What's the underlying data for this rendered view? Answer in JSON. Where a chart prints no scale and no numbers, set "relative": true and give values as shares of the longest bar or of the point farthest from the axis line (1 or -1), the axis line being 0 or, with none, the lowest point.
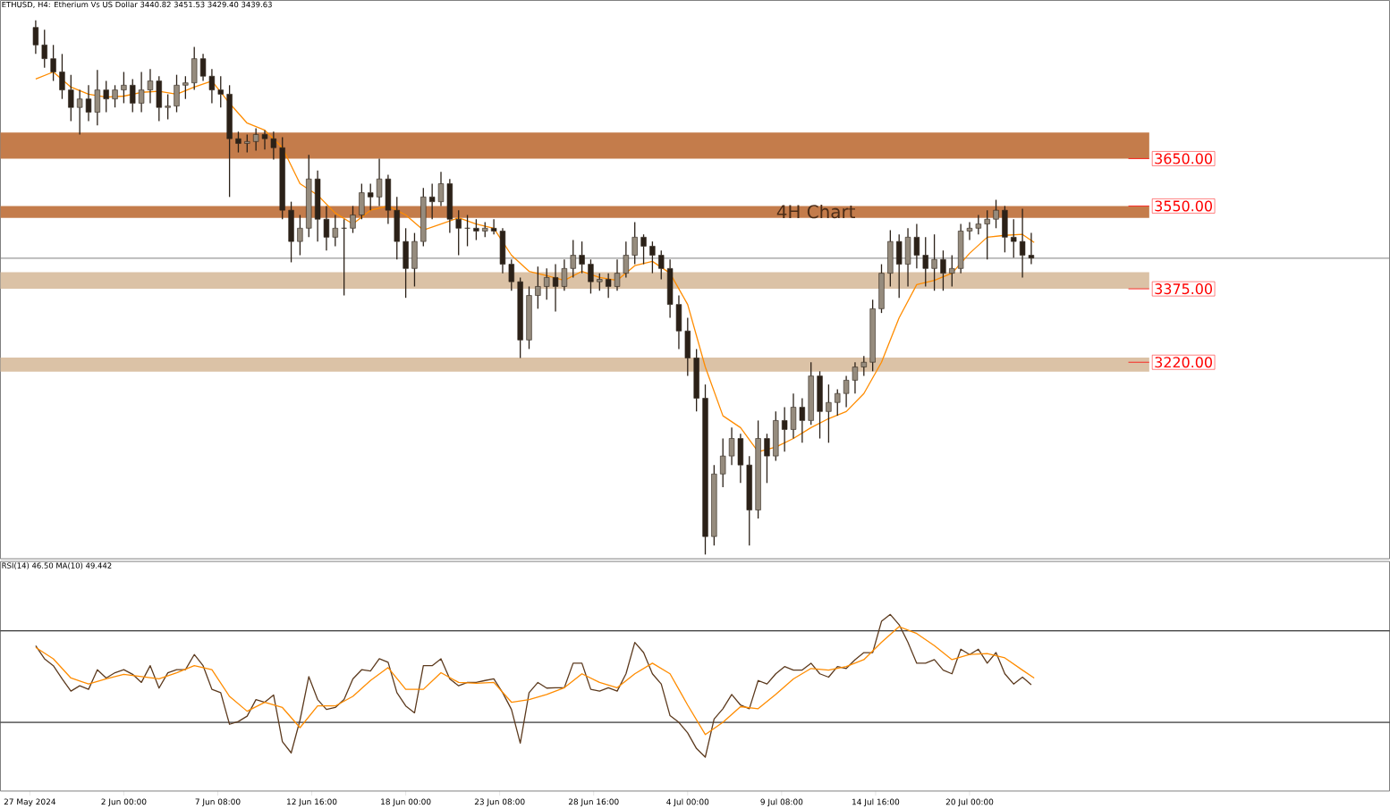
{
  "chart_data": [
    {
      "type": "candlestick",
      "title": "ETHUSD, H4:  Etherium Vs US Dollar  3440.82 3451.53 3429.40 3439.63",
      "x": [
        "2024-05-28T00:00",
        "2024-05-28T12:00",
        "2024-05-29T00:00",
        "2024-05-29T12:00",
        "2024-05-30T00:00",
        "2024-05-30T12:00",
        "2024-05-31T00:00",
        "2024-05-31T12:00",
        "2024-06-01T00:00",
        "2024-06-01T12:00",
        "2024-06-02T00:00",
        "2024-06-02T12:00",
        "2024-06-03T00:00",
        "2024-06-03T12:00",
        "2024-06-04T00:00",
        "2024-06-04T12:00",
        "2024-06-05T00:00",
        "2024-06-05T12:00",
        "2024-06-06T00:00",
        "2024-06-06T12:00",
        "2024-06-07T00:00",
        "2024-06-07T12:00",
        "2024-06-08T00:00",
        "2024-06-08T12:00",
        "2024-06-09T00:00",
        "2024-06-09T12:00",
        "2024-06-10T00:00",
        "2024-06-10T12:00",
        "2024-06-11T00:00",
        "2024-06-11T12:00",
        "2024-06-12T00:00",
        "2024-06-12T12:00",
        "2024-06-13T00:00",
        "2024-06-13T12:00",
        "2024-06-14T00:00",
        "2024-06-14T12:00",
        "2024-06-15T00:00",
        "2024-06-15T12:00",
        "2024-06-16T00:00",
        "2024-06-16T12:00",
        "2024-06-17T00:00",
        "2024-06-17T12:00",
        "2024-06-18T00:00",
        "2024-06-18T12:00",
        "2024-06-19T00:00",
        "2024-06-19T12:00",
        "2024-06-20T00:00",
        "2024-06-20T12:00",
        "2024-06-21T00:00",
        "2024-06-21T12:00",
        "2024-06-22T00:00",
        "2024-06-22T12:00",
        "2024-06-23T00:00",
        "2024-06-23T12:00",
        "2024-06-24T00:00",
        "2024-06-24T12:00",
        "2024-06-25T00:00",
        "2024-06-25T12:00",
        "2024-06-26T00:00",
        "2024-06-26T12:00",
        "2024-06-27T00:00",
        "2024-06-27T12:00",
        "2024-06-28T00:00",
        "2024-06-28T12:00",
        "2024-06-29T00:00",
        "2024-06-29T12:00",
        "2024-06-30T00:00",
        "2024-06-30T12:00",
        "2024-07-01T00:00",
        "2024-07-01T12:00",
        "2024-07-02T00:00",
        "2024-07-02T12:00",
        "2024-07-03T00:00",
        "2024-07-03T12:00",
        "2024-07-04T00:00",
        "2024-07-04T12:00",
        "2024-07-05T00:00",
        "2024-07-05T12:00",
        "2024-07-06T00:00",
        "2024-07-06T12:00",
        "2024-07-07T00:00",
        "2024-07-07T12:00",
        "2024-07-08T00:00",
        "2024-07-08T12:00",
        "2024-07-09T00:00",
        "2024-07-09T12:00",
        "2024-07-10T00:00",
        "2024-07-10T12:00",
        "2024-07-11T00:00",
        "2024-07-11T12:00",
        "2024-07-12T00:00",
        "2024-07-12T12:00",
        "2024-07-13T00:00",
        "2024-07-13T12:00",
        "2024-07-14T00:00",
        "2024-07-14T12:00",
        "2024-07-15T00:00",
        "2024-07-15T12:00",
        "2024-07-16T00:00",
        "2024-07-16T12:00",
        "2024-07-17T00:00",
        "2024-07-17T12:00",
        "2024-07-18T00:00",
        "2024-07-18T12:00",
        "2024-07-19T00:00",
        "2024-07-19T12:00",
        "2024-07-20T00:00",
        "2024-07-20T12:00",
        "2024-07-21T00:00",
        "2024-07-21T12:00",
        "2024-07-22T00:00",
        "2024-07-22T12:00",
        "2024-07-23T00:00",
        "2024-07-23T12:00"
      ],
      "ohlc": [
        [
          3927,
          3942,
          3871,
          3890
        ],
        [
          3890,
          3922,
          3842,
          3861
        ],
        [
          3861,
          3890,
          3814,
          3833
        ],
        [
          3833,
          3871,
          3776,
          3795
        ],
        [
          3795,
          3827,
          3729,
          3758
        ],
        [
          3758,
          3795,
          3701,
          3776
        ],
        [
          3776,
          3805,
          3729,
          3748
        ],
        [
          3748,
          3837,
          3720,
          3795
        ],
        [
          3795,
          3814,
          3748,
          3776
        ],
        [
          3776,
          3805,
          3758,
          3795
        ],
        [
          3795,
          3833,
          3767,
          3805
        ],
        [
          3805,
          3818,
          3748,
          3767
        ],
        [
          3767,
          3833,
          3748,
          3795
        ],
        [
          3795,
          3839,
          3767,
          3814
        ],
        [
          3814,
          3824,
          3729,
          3758
        ],
        [
          3758,
          3786,
          3733,
          3761
        ],
        [
          3761,
          3827,
          3748,
          3805
        ],
        [
          3805,
          3824,
          3776,
          3810
        ],
        [
          3810,
          3886,
          3795,
          3861
        ],
        [
          3861,
          3871,
          3814,
          3824
        ],
        [
          3824,
          3839,
          3767,
          3795
        ],
        [
          3795,
          3824,
          3758,
          3786
        ],
        [
          3786,
          3805,
          3569,
          3692
        ],
        [
          3692,
          3707,
          3663,
          3682
        ],
        [
          3682,
          3701,
          3663,
          3686
        ],
        [
          3686,
          3714,
          3667,
          3701
        ],
        [
          3701,
          3710,
          3669,
          3692
        ],
        [
          3692,
          3707,
          3648,
          3673
        ],
        [
          3673,
          3695,
          3522,
          3541
        ],
        [
          3541,
          3559,
          3431,
          3475
        ],
        [
          3475,
          3531,
          3446,
          3503
        ],
        [
          3503,
          3658,
          3484,
          3607
        ],
        [
          3607,
          3625,
          3475,
          3522
        ],
        [
          3522,
          3550,
          3456,
          3484
        ],
        [
          3484,
          3531,
          3465,
          3503
        ],
        [
          3503,
          3522,
          3361,
          3503
        ],
        [
          3503,
          3550,
          3493,
          3531
        ],
        [
          3531,
          3597,
          3522,
          3578
        ],
        [
          3578,
          3597,
          3541,
          3569
        ],
        [
          3569,
          3650,
          3550,
          3607
        ],
        [
          3607,
          3616,
          3512,
          3541
        ],
        [
          3541,
          3569,
          3437,
          3475
        ],
        [
          3475,
          3503,
          3356,
          3418
        ],
        [
          3418,
          3493,
          3380,
          3475
        ],
        [
          3475,
          3588,
          3465,
          3569
        ],
        [
          3569,
          3597,
          3522,
          3559
        ],
        [
          3559,
          3622,
          3550,
          3597
        ],
        [
          3597,
          3607,
          3493,
          3522
        ],
        [
          3522,
          3541,
          3446,
          3503
        ],
        [
          3503,
          3531,
          3465,
          3503
        ],
        [
          3503,
          3522,
          3478,
          3497
        ],
        [
          3497,
          3516,
          3484,
          3503
        ],
        [
          3503,
          3522,
          3490,
          3497
        ],
        [
          3497,
          3503,
          3408,
          3427
        ],
        [
          3427,
          3437,
          3371,
          3390
        ],
        [
          3390,
          3399,
          3229,
          3267
        ],
        [
          3267,
          3380,
          3248,
          3361
        ],
        [
          3361,
          3422,
          3333,
          3380
        ],
        [
          3380,
          3418,
          3352,
          3399
        ],
        [
          3399,
          3427,
          3327,
          3380
        ],
        [
          3380,
          3437,
          3371,
          3418
        ],
        [
          3418,
          3478,
          3399,
          3446
        ],
        [
          3446,
          3475,
          3408,
          3427
        ],
        [
          3427,
          3437,
          3365,
          3390
        ],
        [
          3390,
          3408,
          3371,
          3395
        ],
        [
          3395,
          3408,
          3356,
          3380
        ],
        [
          3380,
          3437,
          3371,
          3408
        ],
        [
          3408,
          3475,
          3399,
          3446
        ],
        [
          3446,
          3516,
          3427,
          3484
        ],
        [
          3484,
          3490,
          3427,
          3465
        ],
        [
          3465,
          3475,
          3408,
          3446
        ],
        [
          3446,
          3456,
          3395,
          3418
        ],
        [
          3418,
          3437,
          3314,
          3342
        ],
        [
          3342,
          3361,
          3248,
          3286
        ],
        [
          3286,
          3314,
          3191,
          3229
        ],
        [
          3229,
          3248,
          3116,
          3144
        ],
        [
          3144,
          3173,
          2814,
          2852
        ],
        [
          2852,
          3003,
          2833,
          2984
        ],
        [
          2984,
          3059,
          2956,
          3022
        ],
        [
          3022,
          3082,
          3003,
          3059
        ],
        [
          3059,
          3069,
          2965,
          3003
        ],
        [
          3003,
          3022,
          2833,
          2908
        ],
        [
          2908,
          3097,
          2890,
          3059
        ],
        [
          3059,
          3069,
          2965,
          3022
        ],
        [
          3022,
          3116,
          3012,
          3097
        ],
        [
          3097,
          3125,
          3031,
          3078
        ],
        [
          3078,
          3154,
          3059,
          3125
        ],
        [
          3125,
          3144,
          3050,
          3097
        ],
        [
          3097,
          3220,
          3088,
          3191
        ],
        [
          3191,
          3201,
          3059,
          3116
        ],
        [
          3116,
          3173,
          3050,
          3135
        ],
        [
          3135,
          3163,
          3107,
          3154
        ],
        [
          3154,
          3191,
          3125,
          3182
        ],
        [
          3182,
          3220,
          3154,
          3210
        ],
        [
          3210,
          3233,
          3191,
          3220
        ],
        [
          3220,
          3352,
          3201,
          3333
        ],
        [
          3333,
          3427,
          3324,
          3408
        ],
        [
          3408,
          3499,
          3380,
          3475
        ],
        [
          3475,
          3490,
          3356,
          3427
        ],
        [
          3427,
          3503,
          3380,
          3484
        ],
        [
          3484,
          3512,
          3418,
          3446
        ],
        [
          3446,
          3484,
          3380,
          3418
        ],
        [
          3418,
          3490,
          3371,
          3437
        ],
        [
          3437,
          3456,
          3371,
          3408
        ],
        [
          3408,
          3446,
          3380,
          3418
        ],
        [
          3418,
          3512,
          3408,
          3497
        ],
        [
          3497,
          3516,
          3478,
          3503
        ],
        [
          3503,
          3531,
          3490,
          3512
        ],
        [
          3512,
          3541,
          3437,
          3522
        ],
        [
          3522,
          3563,
          3503,
          3541
        ],
        [
          3541,
          3550,
          3452,
          3484
        ],
        [
          3484,
          3522,
          3441,
          3475
        ],
        [
          3475,
          3544,
          3399,
          3446
        ],
        [
          3446,
          3493,
          3427,
          3440
        ]
      ],
      "series": [
        {
          "type": "line",
          "color": "#ff8c00",
          "x": [
            "2024-05-28T00:00",
            "2024-05-29T00:00",
            "2024-05-30T00:00",
            "2024-05-31T00:00",
            "2024-06-01T00:00",
            "2024-06-02T00:00",
            "2024-06-03T00:00",
            "2024-06-04T00:00",
            "2024-06-05T00:00",
            "2024-06-06T00:00",
            "2024-06-07T00:00",
            "2024-06-08T00:00",
            "2024-06-09T00:00",
            "2024-06-10T00:00",
            "2024-06-11T00:00",
            "2024-06-12T00:00",
            "2024-06-13T00:00",
            "2024-06-14T00:00",
            "2024-06-15T00:00",
            "2024-06-16T00:00",
            "2024-06-17T00:00",
            "2024-06-18T00:00",
            "2024-06-19T00:00",
            "2024-06-20T00:00",
            "2024-06-21T00:00",
            "2024-06-22T00:00",
            "2024-06-23T00:00",
            "2024-06-24T00:00",
            "2024-06-25T00:00",
            "2024-06-26T00:00",
            "2024-06-27T00:00",
            "2024-06-28T00:00",
            "2024-06-29T00:00",
            "2024-06-30T00:00",
            "2024-07-01T00:00",
            "2024-07-02T00:00",
            "2024-07-03T00:00",
            "2024-07-04T00:00",
            "2024-07-05T00:00",
            "2024-07-06T00:00",
            "2024-07-07T00:00",
            "2024-07-08T00:00",
            "2024-07-09T00:00",
            "2024-07-10T00:00",
            "2024-07-11T00:00",
            "2024-07-12T00:00",
            "2024-07-13T00:00",
            "2024-07-14T00:00",
            "2024-07-15T00:00",
            "2024-07-16T00:00",
            "2024-07-17T00:00",
            "2024-07-18T00:00",
            "2024-07-19T00:00",
            "2024-07-20T00:00",
            "2024-07-21T00:00",
            "2024-07-22T00:00",
            "2024-07-23T00:00",
            "2024-07-23T16:00"
          ],
          "values": [
            3818,
            3833,
            3801,
            3786,
            3780,
            3782,
            3790,
            3792,
            3786,
            3801,
            3814,
            3767,
            3725,
            3710,
            3673,
            3597,
            3573,
            3535,
            3512,
            3541,
            3550,
            3531,
            3499,
            3512,
            3525,
            3512,
            3503,
            3446,
            3412,
            3403,
            3393,
            3412,
            3399,
            3393,
            3424,
            3433,
            3408,
            3342,
            3210,
            3107,
            3082,
            3031,
            3041,
            3059,
            3082,
            3101,
            3116,
            3154,
            3220,
            3314,
            3384,
            3393,
            3408,
            3450,
            3484,
            3488,
            3490,
            3473
          ]
        }
      ],
      "xlim": [
        "2024-05-26T00:00",
        "2024-08-12T20:00"
      ],
      "ylim": [
        2805,
        3984
      ],
      "tick_labels": false,
      "bands": [
        {
          "axis": "y",
          "from": 3650,
          "to": 3705,
          "color": "#c47c4b"
        },
        {
          "axis": "y",
          "from": 3525,
          "to": 3550,
          "color": "#c47c4b"
        },
        {
          "axis": "y",
          "from": 3375,
          "to": 3410,
          "color": "#dbc2a6"
        },
        {
          "axis": "y",
          "from": 3200,
          "to": 3230,
          "color": "#dbc2a6"
        }
      ],
      "ref_lines": [
        {
          "axis": "y",
          "value": 3439.63,
          "color": "#808080"
        },
        {
          "axis": "y",
          "value": 3650,
          "label": "3650.00",
          "color": "#ff0000"
        },
        {
          "axis": "y",
          "value": 3550,
          "label": "3550.00",
          "color": "#ff0000"
        },
        {
          "axis": "y",
          "value": 3375,
          "label": "3375.00",
          "color": "#ff0000"
        },
        {
          "axis": "y",
          "value": 3220,
          "label": "3220.00",
          "color": "#ff0000"
        }
      ],
      "annotations": [
        "4H Chart"
      ]
    },
    {
      "type": "line",
      "title": "RSI(14) 46.50 MA(10) 49.442",
      "series": [
        {
          "color": "#5c3a1e",
          "x": [
            "2024-05-28T00:00",
            "2024-05-28T12:00",
            "2024-05-29T00:00",
            "2024-05-29T12:00",
            "2024-05-30T00:00",
            "2024-05-30T12:00",
            "2024-05-31T00:00",
            "2024-05-31T12:00",
            "2024-06-01T00:00",
            "2024-06-01T12:00",
            "2024-06-02T00:00",
            "2024-06-02T12:00",
            "2024-06-03T00:00",
            "2024-06-03T12:00",
            "2024-06-04T00:00",
            "2024-06-04T12:00",
            "2024-06-05T00:00",
            "2024-06-05T12:00",
            "2024-06-06T00:00",
            "2024-06-06T12:00",
            "2024-06-07T00:00",
            "2024-06-07T12:00",
            "2024-06-08T00:00",
            "2024-06-08T12:00",
            "2024-06-09T00:00",
            "2024-06-09T12:00",
            "2024-06-10T00:00",
            "2024-06-10T12:00",
            "2024-06-11T00:00",
            "2024-06-11T12:00",
            "2024-06-12T00:00",
            "2024-06-12T12:00",
            "2024-06-13T00:00",
            "2024-06-13T12:00",
            "2024-06-14T00:00",
            "2024-06-14T12:00",
            "2024-06-15T00:00",
            "2024-06-15T12:00",
            "2024-06-16T00:00",
            "2024-06-16T12:00",
            "2024-06-17T00:00",
            "2024-06-17T12:00",
            "2024-06-18T00:00",
            "2024-06-18T12:00",
            "2024-06-19T00:00",
            "2024-06-19T12:00",
            "2024-06-20T00:00",
            "2024-06-20T12:00",
            "2024-06-21T00:00",
            "2024-06-21T12:00",
            "2024-06-22T00:00",
            "2024-06-22T12:00",
            "2024-06-23T00:00",
            "2024-06-23T12:00",
            "2024-06-24T00:00",
            "2024-06-24T12:00",
            "2024-06-25T00:00",
            "2024-06-25T12:00",
            "2024-06-26T00:00",
            "2024-06-26T12:00",
            "2024-06-27T00:00",
            "2024-06-27T12:00",
            "2024-06-28T00:00",
            "2024-06-28T12:00",
            "2024-06-29T00:00",
            "2024-06-29T12:00",
            "2024-06-30T00:00",
            "2024-06-30T12:00",
            "2024-07-01T00:00",
            "2024-07-01T12:00",
            "2024-07-02T00:00",
            "2024-07-02T12:00",
            "2024-07-03T00:00",
            "2024-07-03T12:00",
            "2024-07-04T00:00",
            "2024-07-04T12:00",
            "2024-07-05T00:00",
            "2024-07-05T12:00",
            "2024-07-06T00:00",
            "2024-07-06T12:00",
            "2024-07-07T00:00",
            "2024-07-07T12:00",
            "2024-07-08T00:00",
            "2024-07-08T12:00",
            "2024-07-09T00:00",
            "2024-07-09T12:00",
            "2024-07-10T00:00",
            "2024-07-10T12:00",
            "2024-07-11T00:00",
            "2024-07-11T12:00",
            "2024-07-12T00:00",
            "2024-07-12T12:00",
            "2024-07-13T00:00",
            "2024-07-13T12:00",
            "2024-07-14T00:00",
            "2024-07-14T12:00",
            "2024-07-15T00:00",
            "2024-07-15T12:00",
            "2024-07-16T00:00",
            "2024-07-16T12:00",
            "2024-07-17T00:00",
            "2024-07-17T12:00",
            "2024-07-18T00:00",
            "2024-07-18T12:00",
            "2024-07-19T00:00",
            "2024-07-19T12:00",
            "2024-07-20T00:00",
            "2024-07-20T12:00",
            "2024-07-21T00:00",
            "2024-07-21T12:00",
            "2024-07-22T00:00",
            "2024-07-22T12:00",
            "2024-07-23T00:00",
            "2024-07-23T12:00"
          ],
          "values": [
            0.823,
            0.749,
            0.71,
            0.635,
            0.566,
            0.596,
            0.576,
            0.687,
            0.64,
            0.67,
            0.687,
            0.661,
            0.615,
            0.71,
            0.583,
            0.67,
            0.687,
            0.687,
            0.773,
            0.71,
            0.576,
            0.557,
            0.378,
            0.394,
            0.424,
            0.518,
            0.503,
            0.544,
            0.28,
            0.216,
            0.402,
            0.648,
            0.518,
            0.462,
            0.473,
            0.518,
            0.635,
            0.687,
            0.68,
            0.749,
            0.729,
            0.557,
            0.482,
            0.443,
            0.71,
            0.71,
            0.749,
            0.635,
            0.596,
            0.615,
            0.615,
            0.626,
            0.635,
            0.557,
            0.462,
            0.271,
            0.557,
            0.615,
            0.583,
            0.585,
            0.585,
            0.724,
            0.724,
            0.576,
            0.566,
            0.585,
            0.566,
            0.664,
            0.842,
            0.784,
            0.664,
            0.606,
            0.427,
            0.389,
            0.329,
            0.241,
            0.192,
            0.408,
            0.466,
            0.547,
            0.487,
            0.466,
            0.626,
            0.606,
            0.664,
            0.705,
            0.685,
            0.685,
            0.724,
            0.664,
            0.645,
            0.705,
            0.694,
            0.744,
            0.784,
            0.784,
            0.961,
            1,
            0.942,
            0.842,
            0.724,
            0.724,
            0.744,
            0.685,
            0.664,
            0.803,
            0.773,
            0.803,
            0.724,
            0.784,
            0.664,
            0.606,
            0.645,
            0.602
          ]
        },
        {
          "color": "#ff8c00",
          "x": [
            "2024-05-28T00:00",
            "2024-05-29T00:00",
            "2024-05-30T00:00",
            "2024-05-31T00:00",
            "2024-06-01T00:00",
            "2024-06-02T00:00",
            "2024-06-03T00:00",
            "2024-06-04T00:00",
            "2024-06-05T00:00",
            "2024-06-06T00:00",
            "2024-06-07T00:00",
            "2024-06-08T00:00",
            "2024-06-09T00:00",
            "2024-06-10T00:00",
            "2024-06-11T00:00",
            "2024-06-12T00:00",
            "2024-06-13T00:00",
            "2024-06-14T00:00",
            "2024-06-15T00:00",
            "2024-06-16T00:00",
            "2024-06-17T00:00",
            "2024-06-18T00:00",
            "2024-06-19T00:00",
            "2024-06-20T00:00",
            "2024-06-21T00:00",
            "2024-06-22T00:00",
            "2024-06-23T00:00",
            "2024-06-24T00:00",
            "2024-06-25T00:00",
            "2024-06-26T00:00",
            "2024-06-27T00:00",
            "2024-06-28T00:00",
            "2024-06-29T00:00",
            "2024-06-30T00:00",
            "2024-07-01T00:00",
            "2024-07-02T00:00",
            "2024-07-03T00:00",
            "2024-07-04T00:00",
            "2024-07-05T00:00",
            "2024-07-06T00:00",
            "2024-07-07T00:00",
            "2024-07-08T00:00",
            "2024-07-09T00:00",
            "2024-07-10T00:00",
            "2024-07-11T00:00",
            "2024-07-12T00:00",
            "2024-07-13T00:00",
            "2024-07-14T00:00",
            "2024-07-15T00:00",
            "2024-07-16T00:00",
            "2024-07-17T00:00",
            "2024-07-18T00:00",
            "2024-07-19T00:00",
            "2024-07-20T00:00",
            "2024-07-21T00:00",
            "2024-07-22T00:00",
            "2024-07-23T00:00",
            "2024-07-23T16:00"
          ],
          "values": [
            0.813,
            0.749,
            0.64,
            0.606,
            0.635,
            0.661,
            0.648,
            0.635,
            0.67,
            0.71,
            0.687,
            0.536,
            0.452,
            0.503,
            0.473,
            0.359,
            0.482,
            0.482,
            0.536,
            0.626,
            0.699,
            0.576,
            0.576,
            0.67,
            0.615,
            0.61,
            0.615,
            0.503,
            0.518,
            0.547,
            0.585,
            0.664,
            0.615,
            0.585,
            0.664,
            0.724,
            0.664,
            0.487,
            0.32,
            0.389,
            0.478,
            0.466,
            0.547,
            0.635,
            0.694,
            0.685,
            0.705,
            0.744,
            0.842,
            0.931,
            0.892,
            0.823,
            0.744,
            0.773,
            0.778,
            0.754,
            0.685,
            0.64
          ]
        }
      ],
      "relative": true,
      "xlim": [
        "2024-05-26T00:00",
        "2024-08-12T20:00"
      ],
      "tick_labels": "x",
      "xticks": [
        {
          "value": "2024-05-27T16:00",
          "label": "27 May 2024"
        },
        {
          "value": "2024-06-02T00:00",
          "label": "2 Jun 00:00"
        },
        {
          "value": "2024-06-07T08:00",
          "label": "7 Jun 08:00"
        },
        {
          "value": "2024-06-12T16:00",
          "label": "12 Jun 16:00"
        },
        {
          "value": "2024-06-18T00:00",
          "label": "18 Jun 00:00"
        },
        {
          "value": "2024-06-23T08:00",
          "label": "23 Jun 08:00"
        },
        {
          "value": "2024-06-28T16:00",
          "label": "28 Jun 16:00"
        },
        {
          "value": "2024-07-04T00:00",
          "label": "4 Jul 00:00"
        },
        {
          "value": "2024-07-09T08:00",
          "label": "9 Jul 08:00"
        },
        {
          "value": "2024-07-14T16:00",
          "label": "14 Jul 16:00"
        },
        {
          "value": "2024-07-20T00:00",
          "label": "20 Jul 00:00"
        }
      ],
      "ref_lines": [
        {
          "axis": "y",
          "value": 0.389,
          "color": "#000000"
        },
        {
          "axis": "y",
          "value": 0.907,
          "color": "#000000"
        }
      ]
    }
  ]
}
